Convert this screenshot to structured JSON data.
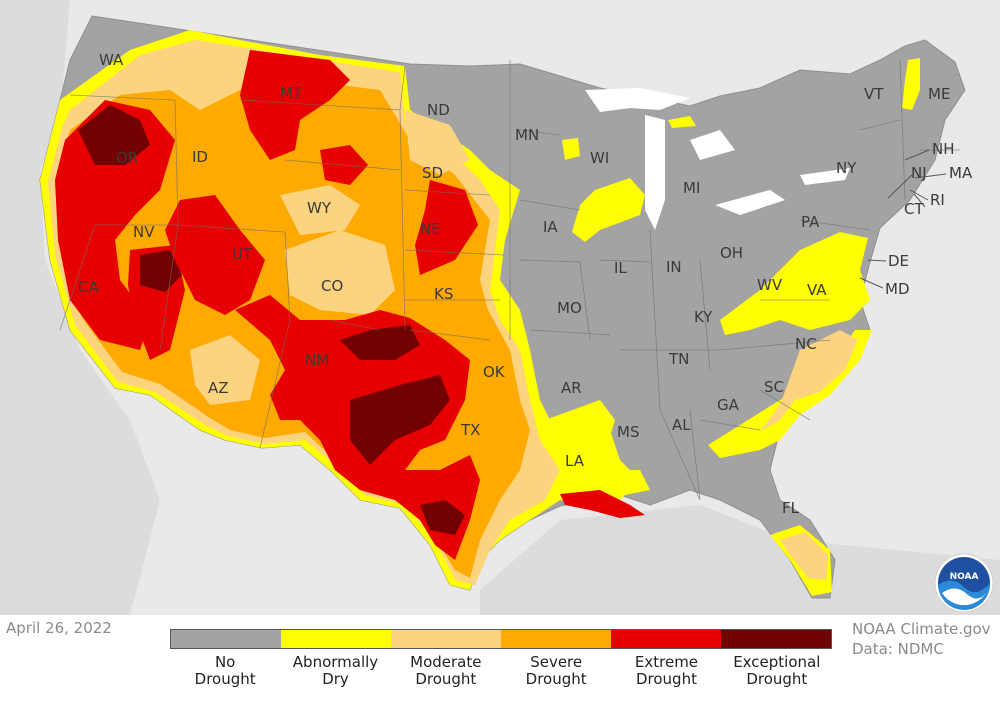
{
  "date": "April 26, 2022",
  "credit": {
    "line1": "NOAA Climate.gov",
    "line2": "Data: NDMC"
  },
  "logo_text": "NOAA",
  "legend": [
    {
      "line1": "No",
      "line2": "Drought",
      "color": "#a3a3a3"
    },
    {
      "line1": "Abnormally",
      "line2": "Dry",
      "color": "#ffff00"
    },
    {
      "line1": "Moderate",
      "line2": "Drought",
      "color": "#fcd37f"
    },
    {
      "line1": "Severe",
      "line2": "Drought",
      "color": "#ffaa00"
    },
    {
      "line1": "Extreme",
      "line2": "Drought",
      "color": "#e60000"
    },
    {
      "line1": "Exceptional",
      "line2": "Drought",
      "color": "#730000"
    }
  ],
  "states": {
    "WA": "WA",
    "OR": "OR",
    "CA": "CA",
    "NV": "NV",
    "ID": "ID",
    "MT": "MT",
    "WY": "WY",
    "UT": "UT",
    "AZ": "AZ",
    "CO": "CO",
    "NM": "NM",
    "ND": "ND",
    "SD": "SD",
    "NE": "NE",
    "KS": "KS",
    "OK": "OK",
    "TX": "TX",
    "MN": "MN",
    "IA": "IA",
    "MO": "MO",
    "AR": "AR",
    "LA": "LA",
    "WI": "WI",
    "IL": "IL",
    "MI": "MI",
    "IN": "IN",
    "OH": "OH",
    "KY": "KY",
    "TN": "TN",
    "MS": "MS",
    "AL": "AL",
    "GA": "GA",
    "FL": "FL",
    "SC": "SC",
    "NC": "NC",
    "VA": "VA",
    "WV": "WV",
    "PA": "PA",
    "NY": "NY",
    "VT": "VT",
    "ME": "ME",
    "NH": "NH",
    "MA": "MA",
    "CT": "CT",
    "RI": "RI",
    "NJ": "NJ",
    "DE": "DE",
    "MD": "MD"
  }
}
